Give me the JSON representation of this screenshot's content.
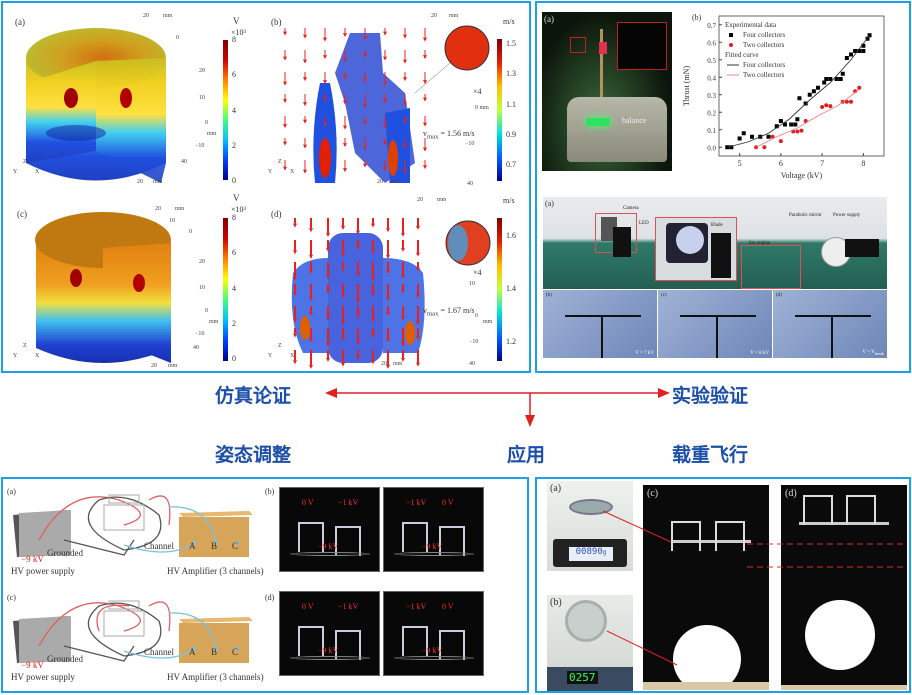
{
  "center": {
    "simulation": "仿真论证",
    "experiment": "实验验证",
    "attitude": "姿态调整",
    "application": "应用",
    "payload_flight": "载重飞行",
    "arrow_color": "#e02020",
    "heading_color": "#1c4fa8",
    "border_color": "#1ea0e6"
  },
  "simulation": {
    "a": {
      "label": "(a)",
      "unit": "V",
      "scale": "×10³",
      "ticks": [
        "8",
        "6",
        "4",
        "2",
        "0"
      ],
      "axis": [
        "20",
        "mm",
        "0",
        "20",
        "10",
        "0",
        "mm",
        "−10",
        "40",
        "20",
        "mm"
      ]
    },
    "b": {
      "label": "(b)",
      "unit": "m/s",
      "ticks": [
        "1.5",
        "1.3",
        "1.1",
        "0.9",
        "0.7"
      ],
      "zoom": "×4",
      "vmax": "v",
      "vmax_sub": "max",
      "vmax_val": "= 1.56 m/s",
      "axis": [
        "20",
        "mm",
        "0 mm",
        "−10",
        "40",
        "20",
        "mm"
      ]
    },
    "c": {
      "label": "(c)",
      "unit": "V",
      "scale": "×10³",
      "ticks": [
        "8",
        "6",
        "4",
        "2",
        "0"
      ],
      "axis": [
        "20",
        "mm",
        "10",
        "0",
        "20",
        "10",
        "0",
        "mm",
        "−10",
        "40",
        "20",
        "mm"
      ]
    },
    "d": {
      "label": "(d)",
      "unit": "m/s",
      "ticks": [
        "1.6",
        "1.4",
        "1.2"
      ],
      "zoom": "×4",
      "vmax": "v",
      "vmax_sub": "max",
      "vmax_val": "= 1.67 m/s",
      "axis": [
        "20",
        "mm",
        "10",
        "0",
        "mm",
        "−10",
        "40",
        "20",
        "mm"
      ]
    },
    "triad": {
      "z": "Z",
      "y": "Y",
      "x": "X"
    }
  },
  "experiment": {
    "a": {
      "label": "(a)",
      "balance": "balance"
    },
    "b": {
      "label": "(b)"
    },
    "setup": {
      "label": "(a)",
      "camera": "Camera",
      "led": "LED",
      "blade": "Blade",
      "ion_engine": "Ion engine",
      "mirror": "Parabolic mirror",
      "power": "Power supply"
    },
    "strips": [
      {
        "label": "(b)",
        "caption": "V = 7 kV"
      },
      {
        "label": "(c)",
        "caption": "V = 8 kV"
      },
      {
        "label": "(d)",
        "caption": "V = V",
        "caption_sub": "break"
      }
    ]
  },
  "chart_data": {
    "type": "scatter",
    "xlabel": "Voltage (kV)",
    "ylabel": "Thrust (mN)",
    "xlim": [
      4.5,
      8.5
    ],
    "ylim": [
      -0.05,
      0.75
    ],
    "xticks": [
      5,
      6,
      7,
      8
    ],
    "yticks": [
      0.0,
      0.1,
      0.2,
      0.3,
      0.4,
      0.5,
      0.6,
      0.7
    ],
    "grid": false,
    "legend_position": "top-left",
    "legend_groups": [
      "Experimental data",
      "Fitted curve"
    ],
    "series": [
      {
        "name": "Four collectors",
        "group": "Experimental data",
        "marker": "square",
        "color": "#000000",
        "points": [
          [
            4.7,
            0.0
          ],
          [
            4.8,
            0.0
          ],
          [
            5.0,
            0.05
          ],
          [
            5.1,
            0.08
          ],
          [
            5.3,
            0.06
          ],
          [
            5.5,
            0.06
          ],
          [
            5.7,
            0.06
          ],
          [
            5.9,
            0.12
          ],
          [
            6.0,
            0.15
          ],
          [
            6.1,
            0.13
          ],
          [
            6.25,
            0.13
          ],
          [
            6.35,
            0.13
          ],
          [
            6.4,
            0.16
          ],
          [
            6.45,
            0.28
          ],
          [
            6.6,
            0.25
          ],
          [
            6.7,
            0.3
          ],
          [
            6.8,
            0.32
          ],
          [
            6.9,
            0.34
          ],
          [
            7.05,
            0.37
          ],
          [
            7.1,
            0.39
          ],
          [
            7.2,
            0.39
          ],
          [
            7.35,
            0.39
          ],
          [
            7.45,
            0.39
          ],
          [
            7.5,
            0.42
          ],
          [
            7.6,
            0.51
          ],
          [
            7.7,
            0.53
          ],
          [
            7.8,
            0.55
          ],
          [
            7.9,
            0.55
          ],
          [
            8.0,
            0.55
          ],
          [
            8.0,
            0.58
          ],
          [
            8.1,
            0.62
          ],
          [
            8.15,
            0.64
          ]
        ]
      },
      {
        "name": "Two collectors",
        "group": "Experimental data",
        "marker": "circle",
        "color": "#e02020",
        "points": [
          [
            5.4,
            0.0
          ],
          [
            5.6,
            0.0
          ],
          [
            5.8,
            0.06
          ],
          [
            6.0,
            0.035
          ],
          [
            6.3,
            0.09
          ],
          [
            6.4,
            0.09
          ],
          [
            6.5,
            0.095
          ],
          [
            6.6,
            0.15
          ],
          [
            7.0,
            0.23
          ],
          [
            7.1,
            0.24
          ],
          [
            7.2,
            0.235
          ],
          [
            7.5,
            0.26
          ],
          [
            7.6,
            0.26
          ],
          [
            7.7,
            0.26
          ],
          [
            7.8,
            0.32
          ],
          [
            7.9,
            0.34
          ]
        ]
      },
      {
        "name": "Four collectors",
        "group": "Fitted curve",
        "marker": "line",
        "color": "#333333",
        "points": [
          [
            4.7,
            0.0
          ],
          [
            5.2,
            0.03
          ],
          [
            5.7,
            0.08
          ],
          [
            6.2,
            0.16
          ],
          [
            6.7,
            0.27
          ],
          [
            7.2,
            0.37
          ],
          [
            7.7,
            0.5
          ],
          [
            8.15,
            0.64
          ]
        ]
      },
      {
        "name": "Two collectors",
        "group": "Fitted curve",
        "marker": "line",
        "color": "#f08080",
        "points": [
          [
            5.4,
            0.0
          ],
          [
            5.9,
            0.06
          ],
          [
            6.4,
            0.11
          ],
          [
            6.9,
            0.18
          ],
          [
            7.4,
            0.24
          ],
          [
            7.9,
            0.33
          ]
        ]
      }
    ]
  },
  "attitude": {
    "a": {
      "label": "(a)"
    },
    "b": {
      "label": "(b)"
    },
    "c": {
      "label": "(c)"
    },
    "d": {
      "label": "(d)"
    },
    "neg9kv": "−9 kV",
    "grounded": "Grounded",
    "hv_supply": "HV power supply",
    "channel": "Channel",
    "channels": [
      "A",
      "B",
      "C"
    ],
    "amplifier": "HV Amplifier (3 channels)",
    "photo_b": [
      {
        "l": "0 V",
        "r": "−1 kV",
        "bottom": "−9 kV"
      },
      {
        "l": "−1 kV",
        "r": "0 V",
        "bottom": "−9 kV"
      }
    ],
    "photo_d": [
      {
        "l": "0 V",
        "r": "−1 kV",
        "bottom": "−9 kV"
      },
      {
        "l": "−1 kV",
        "r": "0 V",
        "bottom": "−9 kV"
      }
    ]
  },
  "payload": {
    "a": {
      "label": "(a)",
      "reading": "00890",
      "unit": "g"
    },
    "b": {
      "label": "(b)",
      "reading": "0257"
    },
    "c": {
      "label": "(c)"
    },
    "d": {
      "label": "(d)"
    }
  }
}
